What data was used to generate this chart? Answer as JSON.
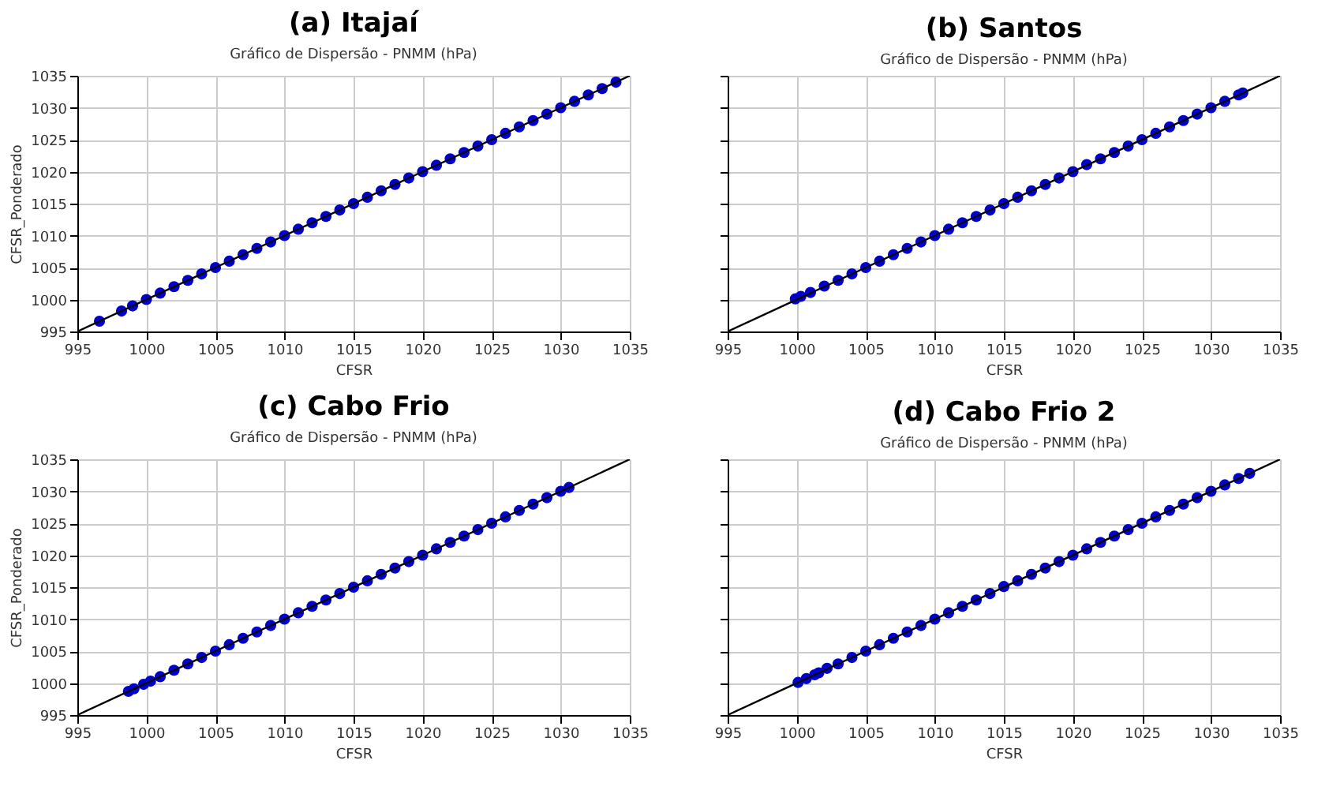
{
  "chart_data": [
    {
      "type": "scatter",
      "title": "(a) Itajaí",
      "subtitle": "Gráfico de Dispersão - PNMM (hPa)",
      "xlabel": "CFSR",
      "ylabel": "CFSR_Ponderado",
      "xlim": [
        995,
        1035
      ],
      "ylim": [
        995,
        1035
      ],
      "xticks": [
        995,
        1000,
        1005,
        1010,
        1015,
        1020,
        1025,
        1030,
        1035
      ],
      "yticks": [
        995,
        1000,
        1005,
        1010,
        1015,
        1020,
        1025,
        1030,
        1035
      ],
      "grid": true,
      "series": [
        {
          "type": "scatter",
          "marker": "circle",
          "color": "#0000cc",
          "x": [
            996.6,
            998.2,
            999,
            1000,
            1001,
            1002,
            1003,
            1004,
            1005,
            1006,
            1007,
            1008,
            1009,
            1010,
            1011,
            1012,
            1013,
            1014,
            1015,
            1016,
            1017,
            1018,
            1019,
            1020,
            1021,
            1022,
            1023,
            1024,
            1025,
            1026,
            1027,
            1028,
            1029,
            1030,
            1031,
            1032,
            1033,
            1034
          ],
          "values": [
            996.6,
            998.2,
            999,
            1000,
            1001,
            1002,
            1003,
            1004,
            1005,
            1006,
            1007,
            1008,
            1009,
            1010,
            1011,
            1012,
            1013,
            1014,
            1015,
            1016,
            1017,
            1018,
            1019,
            1020,
            1021,
            1022,
            1023,
            1024,
            1025,
            1026,
            1027,
            1028,
            1029,
            1030,
            1031,
            1032,
            1033,
            1034
          ]
        },
        {
          "type": "line",
          "color": "#000000",
          "x": [
            995,
            1035
          ],
          "values": [
            995,
            1035
          ]
        }
      ]
    },
    {
      "type": "scatter",
      "title": "(b) Santos",
      "subtitle": "Gráfico de Dispersão - PNMM (hPa)",
      "xlabel": "CFSR",
      "xlim": [
        995,
        1035
      ],
      "ylim": [
        995,
        1035
      ],
      "xticks": [
        995,
        1000,
        1005,
        1010,
        1015,
        1020,
        1025,
        1030,
        1035
      ],
      "yticks": [
        995,
        1000,
        1005,
        1010,
        1015,
        1020,
        1025,
        1030,
        1035
      ],
      "tick_labels": "x",
      "grid": true,
      "series": [
        {
          "type": "scatter",
          "marker": "circle",
          "color": "#0000cc",
          "x": [
            999.9,
            1000.3,
            1001,
            1002,
            1003,
            1004,
            1005,
            1006,
            1007,
            1008,
            1009,
            1010,
            1011,
            1012,
            1013,
            1014,
            1015,
            1016,
            1017,
            1018,
            1019,
            1020,
            1021,
            1022,
            1023,
            1024,
            1025,
            1026,
            1027,
            1028,
            1029,
            1030,
            1031,
            1032,
            1032.3
          ],
          "values": [
            1000.1,
            1000.5,
            1001.1,
            1002.1,
            1003,
            1004,
            1005,
            1006,
            1007,
            1008,
            1009,
            1010,
            1011,
            1012,
            1013,
            1014,
            1015,
            1016,
            1017,
            1018,
            1019,
            1020,
            1021.1,
            1022,
            1023,
            1024,
            1025,
            1026,
            1027,
            1028,
            1029,
            1030,
            1031,
            1032,
            1032.3
          ]
        },
        {
          "type": "line",
          "color": "#000000",
          "x": [
            995,
            1035
          ],
          "values": [
            995,
            1035
          ]
        }
      ]
    },
    {
      "type": "scatter",
      "title": "(c) Cabo Frio",
      "subtitle": "Gráfico de Dispersão - PNMM (hPa)",
      "xlabel": "CFSR",
      "ylabel": "CFSR_Ponderado",
      "xlim": [
        995,
        1035
      ],
      "ylim": [
        995,
        1035
      ],
      "xticks": [
        995,
        1000,
        1005,
        1010,
        1015,
        1020,
        1025,
        1030,
        1035
      ],
      "yticks": [
        995,
        1000,
        1005,
        1010,
        1015,
        1020,
        1025,
        1030,
        1035
      ],
      "grid": true,
      "series": [
        {
          "type": "scatter",
          "marker": "circle",
          "color": "#0000cc",
          "x": [
            998.7,
            999.1,
            999.8,
            1000.3,
            1001,
            1002,
            1003,
            1004,
            1005,
            1006,
            1007,
            1008,
            1009,
            1010,
            1011,
            1012,
            1013,
            1014,
            1015,
            1016,
            1017,
            1018,
            1019,
            1020,
            1021,
            1022,
            1023,
            1024,
            1025,
            1026,
            1027,
            1028,
            1029,
            1030,
            1030.6
          ],
          "values": [
            998.7,
            999.1,
            999.8,
            1000.3,
            1001,
            1002,
            1003,
            1004,
            1005,
            1006,
            1007,
            1008,
            1009,
            1010,
            1011,
            1012,
            1013,
            1014,
            1015,
            1016,
            1017,
            1018,
            1019,
            1020,
            1021,
            1022,
            1023,
            1024,
            1025,
            1026,
            1027,
            1028,
            1029,
            1030,
            1030.6
          ]
        },
        {
          "type": "line",
          "color": "#000000",
          "x": [
            995,
            1035
          ],
          "values": [
            995,
            1035
          ]
        }
      ]
    },
    {
      "type": "scatter",
      "title": "(d) Cabo Frio 2",
      "subtitle": "Gráfico de Dispersão - PNMM (hPa)",
      "xlabel": "CFSR",
      "xlim": [
        995,
        1035
      ],
      "ylim": [
        995,
        1035
      ],
      "xticks": [
        995,
        1000,
        1005,
        1010,
        1015,
        1020,
        1025,
        1030,
        1035
      ],
      "yticks": [
        995,
        1000,
        1005,
        1010,
        1015,
        1020,
        1025,
        1030,
        1035
      ],
      "tick_labels": "x",
      "grid": true,
      "series": [
        {
          "type": "scatter",
          "marker": "circle",
          "color": "#0000cc",
          "x": [
            1000.1,
            1000.7,
            1001.3,
            1001.6,
            1002.2,
            1003,
            1004,
            1005,
            1006,
            1007,
            1008,
            1009,
            1010,
            1011,
            1012,
            1013,
            1014,
            1015,
            1016,
            1017,
            1018,
            1019,
            1020,
            1021,
            1022,
            1023,
            1024,
            1025,
            1026,
            1027,
            1028,
            1029,
            1030,
            1031,
            1032,
            1032.8
          ],
          "values": [
            1000.1,
            1000.7,
            1001.3,
            1001.6,
            1002.3,
            1003,
            1004,
            1005,
            1006,
            1007,
            1008,
            1009,
            1010,
            1011,
            1012,
            1013,
            1014,
            1015.1,
            1016,
            1017,
            1018,
            1019,
            1020,
            1021,
            1022,
            1023,
            1024,
            1025,
            1026,
            1027,
            1028,
            1029,
            1030,
            1031,
            1032,
            1032.8
          ]
        },
        {
          "type": "line",
          "color": "#000000",
          "x": [
            995,
            1035
          ],
          "values": [
            995,
            1035
          ]
        }
      ]
    }
  ]
}
